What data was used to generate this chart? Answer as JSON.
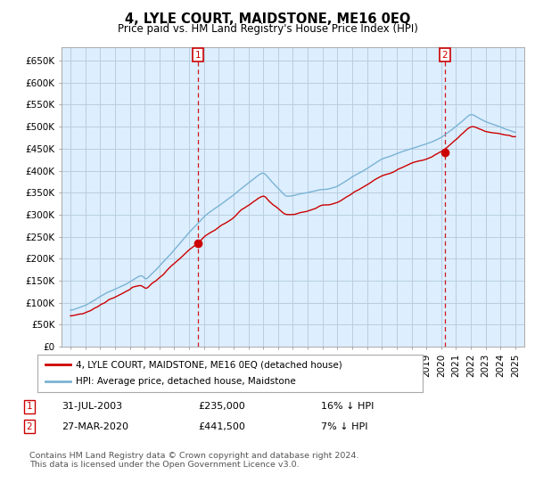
{
  "title": "4, LYLE COURT, MAIDSTONE, ME16 0EQ",
  "subtitle": "Price paid vs. HM Land Registry's House Price Index (HPI)",
  "ylim": [
    0,
    680000
  ],
  "yticks": [
    0,
    50000,
    100000,
    150000,
    200000,
    250000,
    300000,
    350000,
    400000,
    450000,
    500000,
    550000,
    600000,
    650000
  ],
  "ytick_labels": [
    "£0",
    "£50K",
    "£100K",
    "£150K",
    "£200K",
    "£250K",
    "£300K",
    "£350K",
    "£400K",
    "£450K",
    "£500K",
    "£550K",
    "£600K",
    "£650K"
  ],
  "hpi_color": "#7ab3d4",
  "price_color": "#cc0000",
  "bg_plot_color": "#ddeeff",
  "marker1_year": 2003.58,
  "marker1_value": 235000,
  "marker2_year": 2020.23,
  "marker2_value": 441500,
  "legend_line1": "4, LYLE COURT, MAIDSTONE, ME16 0EQ (detached house)",
  "legend_line2": "HPI: Average price, detached house, Maidstone",
  "annotation1_date": "31-JUL-2003",
  "annotation1_price": "£235,000",
  "annotation1_hpi": "16% ↓ HPI",
  "annotation2_date": "27-MAR-2020",
  "annotation2_price": "£441,500",
  "annotation2_hpi": "7% ↓ HPI",
  "footer": "Contains HM Land Registry data © Crown copyright and database right 2024.\nThis data is licensed under the Open Government Licence v3.0.",
  "background_color": "#ffffff",
  "grid_color": "#b8cfe0"
}
